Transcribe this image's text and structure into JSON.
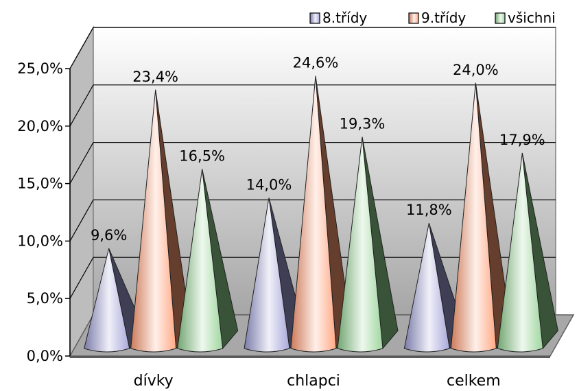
{
  "chart_data": {
    "type": "bar",
    "style": "3d-cone",
    "categories": [
      "dívky",
      "chlapci",
      "celkem"
    ],
    "series": [
      {
        "name": "8.třídy",
        "values": [
          9.6,
          14.0,
          11.8
        ],
        "color": "#9a9ad4",
        "value_labels": [
          "9,6%",
          "14,0%",
          "11,8%"
        ]
      },
      {
        "name": "9.třídy",
        "values": [
          23.4,
          24.6,
          24.0
        ],
        "color": "#ff9a70",
        "value_labels": [
          "23,4%",
          "24,6%",
          "24,0%"
        ]
      },
      {
        "name": "všichni",
        "values": [
          16.5,
          19.3,
          17.9
        ],
        "color": "#8fcf8f",
        "value_labels": [
          "16,5%",
          "19,3%",
          "17,9%"
        ]
      }
    ],
    "y_ticks": [
      "0,0%",
      "5,0%",
      "10,0%",
      "15,0%",
      "20,0%",
      "25,0%"
    ],
    "ylim": [
      0,
      25
    ],
    "ystep": 5,
    "grid": true,
    "legend_position": "top-right",
    "title": "",
    "xlabel": "",
    "ylabel": ""
  }
}
